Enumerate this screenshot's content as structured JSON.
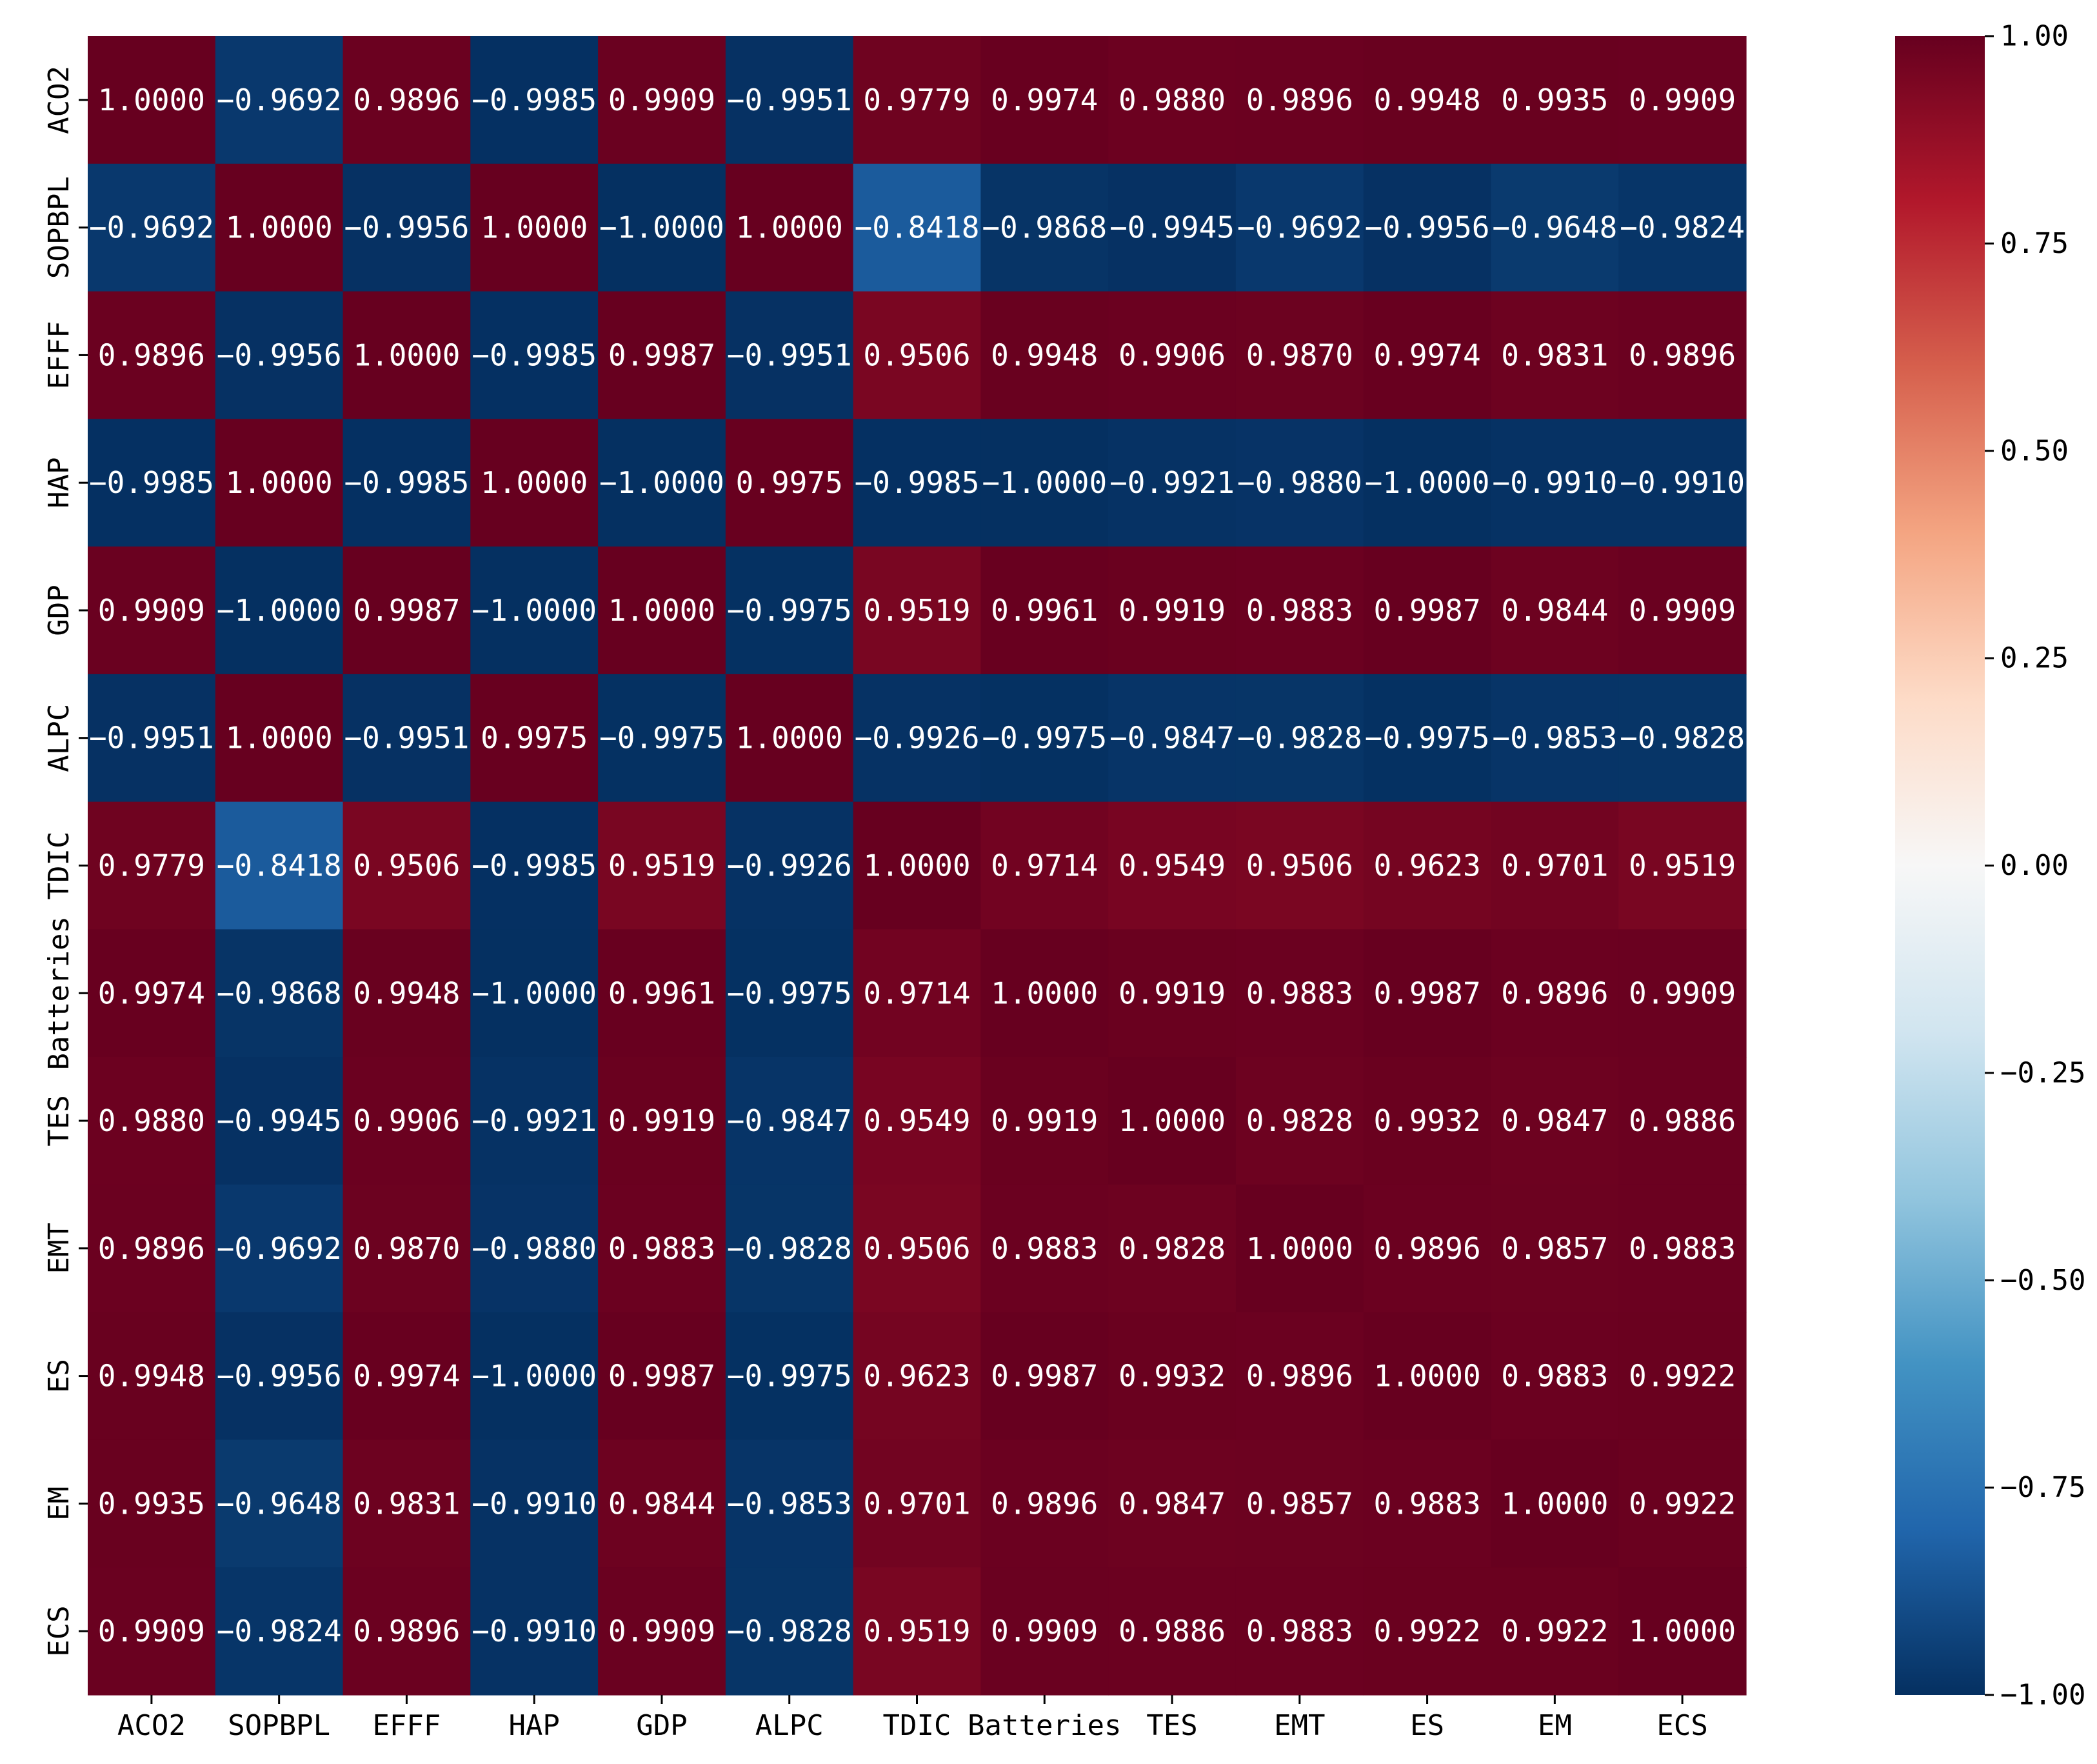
{
  "chart_data": {
    "type": "heatmap",
    "title": "",
    "xlabel": "",
    "ylabel": "",
    "x_labels": [
      "ACO2",
      "SOPBPL",
      "EFFF",
      "HAP",
      "GDP",
      "ALPC",
      "TDIC",
      "Batteries",
      "TES",
      "EMT",
      "ES",
      "EM",
      "ECS"
    ],
    "y_labels": [
      "ACO2",
      "SOPBPL",
      "EFFF",
      "HAP",
      "GDP",
      "ALPC",
      "TDIC",
      "Batteries",
      "TES",
      "EMT",
      "ES",
      "EM",
      "ECS"
    ],
    "values": [
      [
        1.0,
        -0.9692,
        0.9896,
        -0.9985,
        0.9909,
        -0.9951,
        0.9779,
        0.9974,
        0.988,
        0.9896,
        0.9948,
        0.9935,
        0.9909
      ],
      [
        -0.9692,
        1.0,
        -0.9956,
        1.0,
        -1.0,
        1.0,
        -0.8418,
        -0.9868,
        -0.9945,
        -0.9692,
        -0.9956,
        -0.9648,
        -0.9824
      ],
      [
        0.9896,
        -0.9956,
        1.0,
        -0.9985,
        0.9987,
        -0.9951,
        0.9506,
        0.9948,
        0.9906,
        0.987,
        0.9974,
        0.9831,
        0.9896
      ],
      [
        -0.9985,
        1.0,
        -0.9985,
        1.0,
        -1.0,
        0.9975,
        -0.9985,
        -1.0,
        -0.9921,
        -0.988,
        -1.0,
        -0.991,
        -0.991
      ],
      [
        0.9909,
        -1.0,
        0.9987,
        -1.0,
        1.0,
        -0.9975,
        0.9519,
        0.9961,
        0.9919,
        0.9883,
        0.9987,
        0.9844,
        0.9909
      ],
      [
        -0.9951,
        1.0,
        -0.9951,
        0.9975,
        -0.9975,
        1.0,
        -0.9926,
        -0.9975,
        -0.9847,
        -0.9828,
        -0.9975,
        -0.9853,
        -0.9828
      ],
      [
        0.9779,
        -0.8418,
        0.9506,
        -0.9985,
        0.9519,
        -0.9926,
        1.0,
        0.9714,
        0.9549,
        0.9506,
        0.9623,
        0.9701,
        0.9519
      ],
      [
        0.9974,
        -0.9868,
        0.9948,
        -1.0,
        0.9961,
        -0.9975,
        0.9714,
        1.0,
        0.9919,
        0.9883,
        0.9987,
        0.9896,
        0.9909
      ],
      [
        0.988,
        -0.9945,
        0.9906,
        -0.9921,
        0.9919,
        -0.9847,
        0.9549,
        0.9919,
        1.0,
        0.9828,
        0.9932,
        0.9847,
        0.9886
      ],
      [
        0.9896,
        -0.9692,
        0.987,
        -0.988,
        0.9883,
        -0.9828,
        0.9506,
        0.9883,
        0.9828,
        1.0,
        0.9896,
        0.9857,
        0.9883
      ],
      [
        0.9948,
        -0.9956,
        0.9974,
        -1.0,
        0.9987,
        -0.9975,
        0.9623,
        0.9987,
        0.9932,
        0.9896,
        1.0,
        0.9883,
        0.9922
      ],
      [
        0.9935,
        -0.9648,
        0.9831,
        -0.991,
        0.9844,
        -0.9853,
        0.9701,
        0.9896,
        0.9847,
        0.9857,
        0.9883,
        1.0,
        0.9922
      ],
      [
        0.9909,
        -0.9824,
        0.9896,
        -0.991,
        0.9909,
        -0.9828,
        0.9519,
        0.9909,
        0.9886,
        0.9883,
        0.9922,
        0.9922,
        1.0
      ]
    ],
    "value_format": "0.0000",
    "vmin": -1.0,
    "vmax": 1.0,
    "colormap": "RdBu_r",
    "colormap_stops": [
      "#053061",
      "#2166ac",
      "#4393c3",
      "#92c5de",
      "#d1e5f0",
      "#f7f7f7",
      "#fddbc7",
      "#f4a582",
      "#d6604d",
      "#b2182b",
      "#67001f"
    ],
    "annotation_color": "#ffffff",
    "colorbar": {
      "ticks": [
        1.0,
        0.75,
        0.5,
        0.25,
        0.0,
        -0.25,
        -0.5,
        -0.75,
        -1.0
      ],
      "tick_labels": [
        "1.00",
        "0.75",
        "0.50",
        "0.25",
        "0.00",
        "−0.25",
        "−0.50",
        "−0.75",
        "−1.00"
      ]
    },
    "grid": false,
    "legend": "colorbar right"
  }
}
